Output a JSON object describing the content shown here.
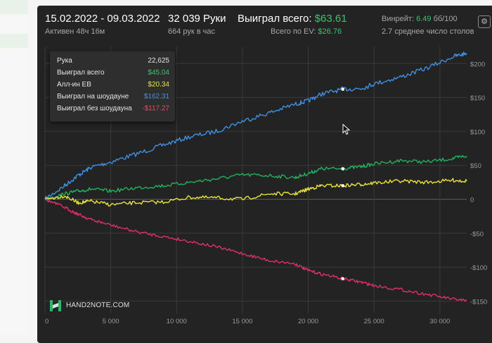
{
  "header": {
    "date_range": "15.02.2022 - 09.03.2022",
    "active": "Активен 48ч 16м",
    "hands": "32 039 Руки",
    "hands_per_hour": "664 рук в час",
    "won_total_label": "Выиграл всего:",
    "won_total_value": "$63.61",
    "ev_label": "Всего по EV:",
    "ev_value": "$26.76",
    "winrate_label": "Винрейт:",
    "winrate_value": "6.49",
    "winrate_unit": "бб/100",
    "avg_tables": "2.7 среднее число столов"
  },
  "tooltip": {
    "rows": [
      {
        "label": "Рука",
        "value": "22,625",
        "color": "#e6e6e6"
      },
      {
        "label": "Выиграл всего",
        "value": "$45.04",
        "color": "#3ec26f"
      },
      {
        "label": "Алл-ин EB",
        "value": "$20.34",
        "color": "#e4e44a"
      },
      {
        "label": "Выиграл на шоудауне",
        "value": "$162.31",
        "color": "#4a90d9"
      },
      {
        "label": "Выиграл без шоудауна",
        "value": "-$117.27",
        "color": "#e04a6e"
      }
    ]
  },
  "logo": {
    "text": "HAND2NOTE.COM"
  },
  "colors": {
    "total": "#22b25d",
    "allin_ev": "#e8e43c",
    "showdown": "#3f8fe0",
    "non_showdown": "#e0306a",
    "grid": "#3a3a3a",
    "tick": "#9a9a9a"
  },
  "chart_data": {
    "type": "line",
    "xlim": [
      0,
      32039
    ],
    "ylim": [
      -155,
      220
    ],
    "x_ticks": [
      0,
      5000,
      10000,
      15000,
      20000,
      25000,
      30000
    ],
    "x_tick_labels": [
      "0",
      "5 000",
      "10 000",
      "15 000",
      "20 000",
      "25 000",
      "30 000"
    ],
    "y_ticks": [
      200,
      150,
      100,
      50,
      0,
      -50,
      -100,
      -150
    ],
    "y_tick_labels": [
      "$200",
      "$150",
      "$100",
      "$50",
      "0",
      "-$50",
      "-$100",
      "-$150"
    ],
    "grid": true,
    "series": [
      {
        "key": "showdown",
        "x": [
          0,
          1500,
          2500,
          3500,
          5000,
          7000,
          9000,
          11000,
          13000,
          15000,
          17000,
          19000,
          20000,
          21000,
          22625,
          24000,
          25000,
          27000,
          29000,
          31000,
          32039
        ],
        "values": [
          0,
          20,
          35,
          47,
          55,
          67,
          80,
          92,
          100,
          115,
          127,
          140,
          145,
          155,
          162,
          163,
          170,
          180,
          193,
          210,
          215
        ]
      },
      {
        "key": "total",
        "x": [
          0,
          1500,
          2500,
          3500,
          5000,
          7000,
          9000,
          11000,
          13000,
          15000,
          17000,
          19000,
          20000,
          21000,
          22625,
          24000,
          25000,
          27000,
          29000,
          31000,
          32039
        ],
        "values": [
          0,
          8,
          12,
          15,
          12,
          17,
          20,
          25,
          30,
          36,
          35,
          32,
          38,
          45,
          45,
          48,
          52,
          57,
          55,
          60,
          64
        ]
      },
      {
        "key": "allin_ev",
        "x": [
          0,
          1500,
          2500,
          3500,
          5000,
          7000,
          9000,
          11000,
          13000,
          15000,
          17000,
          19000,
          20000,
          21000,
          22625,
          24000,
          25000,
          27000,
          29000,
          31000,
          32039
        ],
        "values": [
          0,
          5,
          -5,
          -3,
          -8,
          -5,
          -4,
          3,
          2,
          0,
          8,
          8,
          15,
          20,
          20,
          22,
          24,
          27,
          25,
          28,
          27
        ]
      },
      {
        "key": "non_showdown",
        "x": [
          0,
          1500,
          2500,
          3500,
          5000,
          7000,
          9000,
          11000,
          13000,
          15000,
          17000,
          19000,
          20000,
          21000,
          22625,
          24000,
          25000,
          27000,
          29000,
          31000,
          32039
        ],
        "values": [
          0,
          -12,
          -22,
          -30,
          -38,
          -48,
          -55,
          -62,
          -70,
          -80,
          -90,
          -95,
          -105,
          -110,
          -117,
          -122,
          -127,
          -133,
          -140,
          -147,
          -150
        ]
      }
    ],
    "highlight_x": 22625
  }
}
